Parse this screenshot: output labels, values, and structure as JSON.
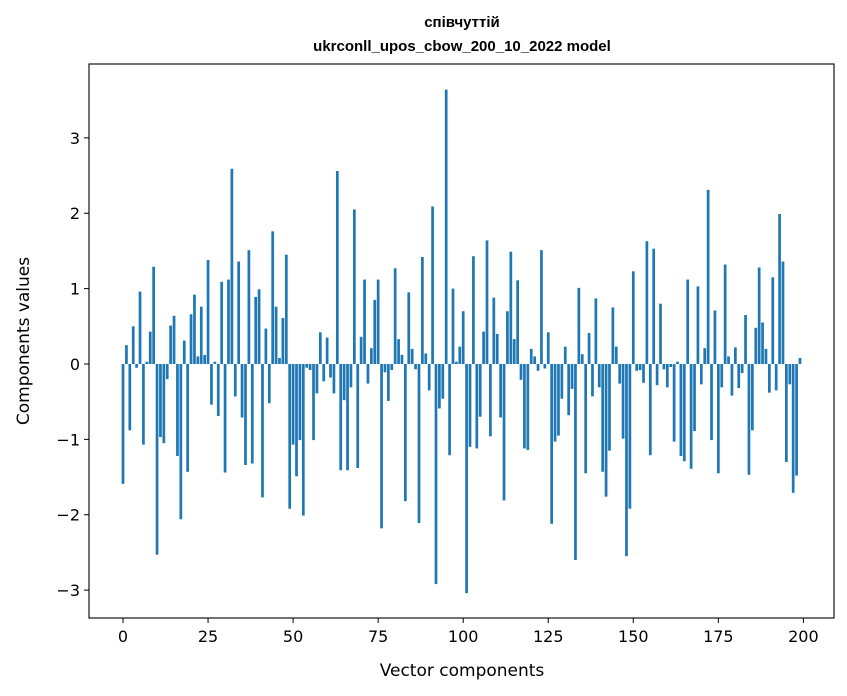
{
  "chart_data": {
    "type": "bar",
    "title": "співчуттій",
    "subtitle": "ukrconll_upos_cbow_200_10_2022 model",
    "xlabel": "Vector components",
    "ylabel": "Components values",
    "xlim": [
      -10,
      209
    ],
    "ylim": [
      -3.37,
      3.98
    ],
    "xticks": [
      0,
      25,
      50,
      75,
      100,
      125,
      150,
      175,
      200
    ],
    "yticks": [
      -3,
      -2,
      -1,
      0,
      1,
      2,
      3
    ],
    "bar_color": "#1f77b4",
    "grid": false,
    "legend": "none",
    "x": [
      0,
      1,
      2,
      3,
      4,
      5,
      6,
      7,
      8,
      9,
      10,
      11,
      12,
      13,
      14,
      15,
      16,
      17,
      18,
      19,
      20,
      21,
      22,
      23,
      24,
      25,
      26,
      27,
      28,
      29,
      30,
      31,
      32,
      33,
      34,
      35,
      36,
      37,
      38,
      39,
      40,
      41,
      42,
      43,
      44,
      45,
      46,
      47,
      48,
      49,
      50,
      51,
      52,
      53,
      54,
      55,
      56,
      57,
      58,
      59,
      60,
      61,
      62,
      63,
      64,
      65,
      66,
      67,
      68,
      69,
      70,
      71,
      72,
      73,
      74,
      75,
      76,
      77,
      78,
      79,
      80,
      81,
      82,
      83,
      84,
      85,
      86,
      87,
      88,
      89,
      90,
      91,
      92,
      93,
      94,
      95,
      96,
      97,
      98,
      99,
      100,
      101,
      102,
      103,
      104,
      105,
      106,
      107,
      108,
      109,
      110,
      111,
      112,
      113,
      114,
      115,
      116,
      117,
      118,
      119,
      120,
      121,
      122,
      123,
      124,
      125,
      126,
      127,
      128,
      129,
      130,
      131,
      132,
      133,
      134,
      135,
      136,
      137,
      138,
      139,
      140,
      141,
      142,
      143,
      144,
      145,
      146,
      147,
      148,
      149,
      150,
      151,
      152,
      153,
      154,
      155,
      156,
      157,
      158,
      159,
      160,
      161,
      162,
      163,
      164,
      165,
      166,
      167,
      168,
      169,
      170,
      171,
      172,
      173,
      174,
      175,
      176,
      177,
      178,
      179,
      180,
      181,
      182,
      183,
      184,
      185,
      186,
      187,
      188,
      189,
      190,
      191,
      192,
      193,
      194,
      195,
      196,
      197,
      198,
      199
    ],
    "values": [
      -1.59,
      0.25,
      -0.88,
      0.5,
      -0.05,
      0.96,
      -1.07,
      0.03,
      0.43,
      1.29,
      -2.53,
      -0.97,
      -1.05,
      -0.2,
      0.51,
      0.64,
      -1.22,
      -2.06,
      0.31,
      -1.43,
      0.66,
      0.92,
      0.1,
      0.76,
      0.12,
      1.38,
      -0.54,
      0.03,
      -0.69,
      1.09,
      -1.44,
      1.12,
      2.59,
      -0.43,
      1.36,
      -0.71,
      -1.34,
      1.51,
      -1.32,
      0.89,
      0.99,
      -1.77,
      0.47,
      -0.52,
      1.76,
      0.76,
      0.08,
      0.61,
      1.45,
      -1.92,
      -1.07,
      -1.49,
      -1.01,
      -2.01,
      -0.05,
      -0.08,
      -1.01,
      -0.39,
      0.42,
      -0.23,
      0.35,
      -0.18,
      -0.39,
      2.56,
      -1.41,
      -0.48,
      -1.41,
      -0.31,
      2.05,
      -1.38,
      0.36,
      1.12,
      -0.26,
      0.21,
      0.85,
      1.12,
      -2.18,
      -0.11,
      -0.49,
      -0.08,
      1.27,
      0.33,
      0.12,
      -1.82,
      0.95,
      0.2,
      -0.07,
      -2.11,
      1.42,
      0.14,
      -0.35,
      2.09,
      -2.92,
      -0.59,
      -0.46,
      3.64,
      -1.21,
      1.0,
      0.03,
      0.23,
      0.7,
      -3.04,
      -1.1,
      1.43,
      -1.12,
      -0.7,
      0.43,
      1.64,
      -0.96,
      0.88,
      0.4,
      -0.71,
      -1.81,
      0.7,
      1.49,
      0.33,
      1.11,
      -0.21,
      -1.12,
      -1.14,
      0.2,
      0.1,
      -0.09,
      1.51,
      -0.06,
      0.42,
      -2.12,
      -1.03,
      -0.95,
      -0.46,
      0.23,
      -0.68,
      -0.33,
      -2.6,
      1.01,
      0.13,
      -1.45,
      0.41,
      -0.43,
      0.87,
      -0.31,
      -1.43,
      -1.76,
      -1.15,
      0.75,
      0.23,
      -0.26,
      -0.99,
      -2.55,
      -1.92,
      1.23,
      -0.09,
      -0.08,
      -0.25,
      1.63,
      -1.21,
      1.53,
      -0.28,
      0.8,
      -0.07,
      -0.31,
      -0.04,
      -1.03,
      0.03,
      -1.22,
      -1.29,
      1.12,
      -1.39,
      -0.89,
      1.03,
      -0.27,
      0.21,
      2.31,
      -1.01,
      0.71,
      -1.45,
      -0.31,
      1.32,
      0.1,
      -0.42,
      0.22,
      -0.32,
      -0.12,
      0.65,
      -1.47,
      -0.88,
      0.48,
      1.28,
      0.55,
      0.2,
      -0.38,
      1.15,
      -0.35,
      1.99,
      1.36,
      -1.3,
      -0.27,
      -1.71,
      -1.48,
      0.08
    ]
  }
}
